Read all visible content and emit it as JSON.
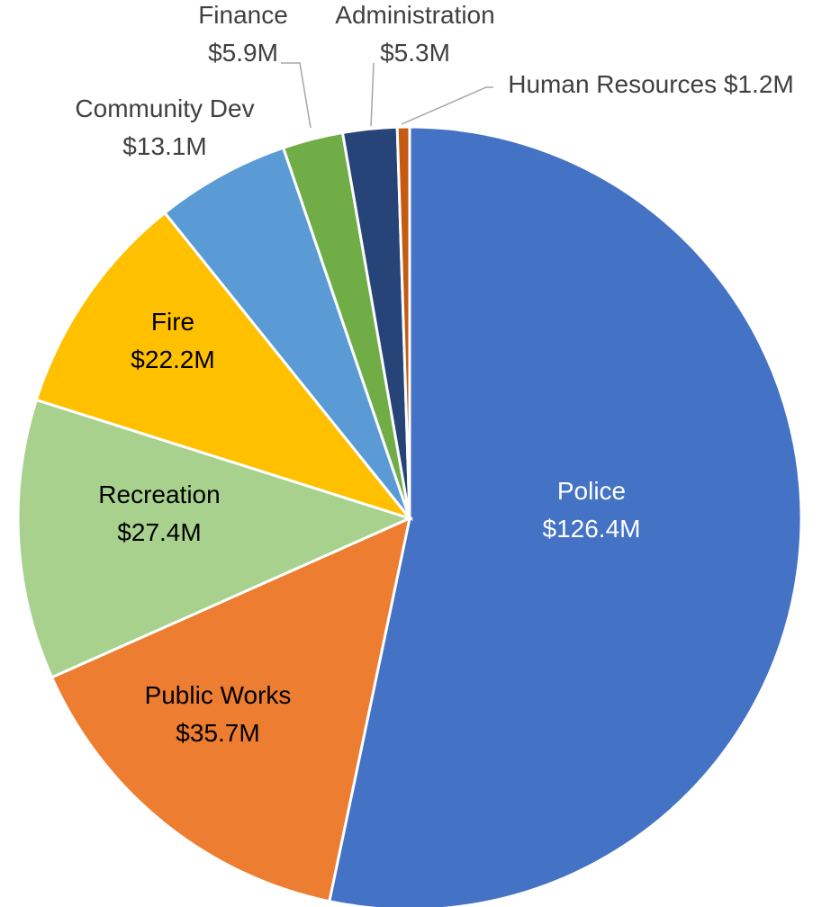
{
  "chart_data": {
    "type": "pie",
    "title": "",
    "start_angle_deg": 0,
    "direction": "clockwise",
    "slices": [
      {
        "label": "Police",
        "value": 126.4,
        "display": "$126.4M",
        "color": "#4472C4",
        "label_color": "#ffffff"
      },
      {
        "label": "Public Works",
        "value": 35.7,
        "display": "$35.7M",
        "color": "#ED7D31",
        "label_color": "#000000"
      },
      {
        "label": "Recreation",
        "value": 27.4,
        "display": "$27.4M",
        "color": "#A9D18E",
        "label_color": "#000000"
      },
      {
        "label": "Fire",
        "value": 22.2,
        "display": "$22.2M",
        "color": "#FFC000",
        "label_color": "#000000"
      },
      {
        "label": "Community Dev",
        "value": 13.1,
        "display": "$13.1M",
        "color": "#5B9BD5",
        "label_color": "#404040"
      },
      {
        "label": "Finance",
        "value": 5.9,
        "display": "$5.9M",
        "color": "#70AD47",
        "label_color": "#404040"
      },
      {
        "label": "Administration",
        "value": 5.3,
        "display": "$5.3M",
        "color": "#264478",
        "label_color": "#404040"
      },
      {
        "label": "Human Resources",
        "value": 1.2,
        "display": "$1.2M",
        "color": "#C55A11",
        "label_color": "#404040"
      }
    ],
    "unit": "$M"
  }
}
